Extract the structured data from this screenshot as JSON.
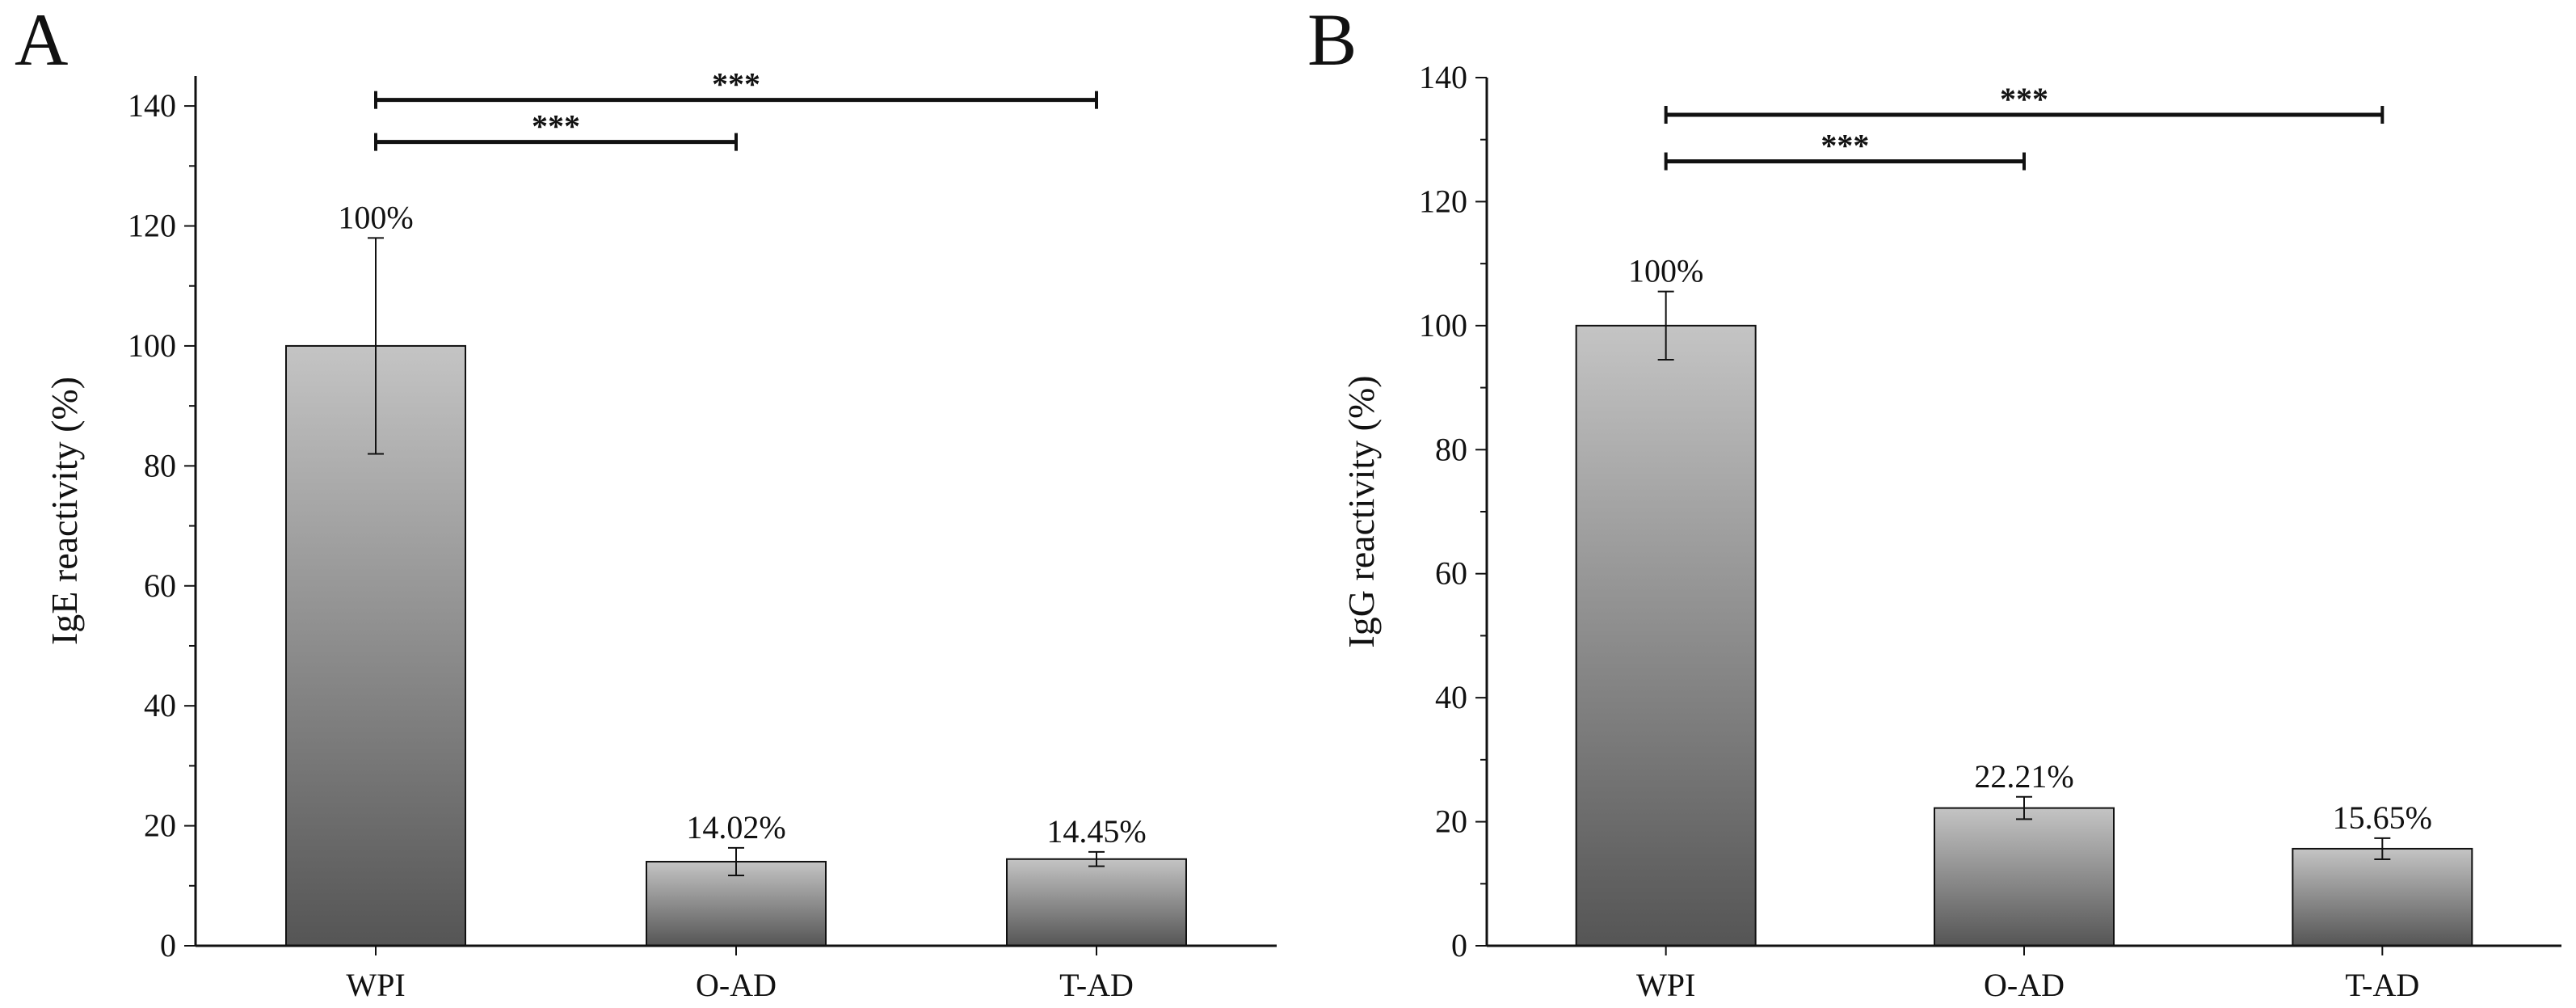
{
  "chart_data": [
    {
      "type": "bar",
      "panel_label": "A",
      "categories": [
        "WPI",
        "O-AD",
        "T-AD"
      ],
      "values": [
        100,
        14.02,
        14.45
      ],
      "errors": [
        18,
        2.3,
        1.2
      ],
      "data_labels": [
        "100%",
        "14.02%",
        "14.45%"
      ],
      "ylabel": "IgE reactivity (%)",
      "ylim": [
        0,
        145
      ],
      "yticks": [
        0,
        20,
        40,
        60,
        80,
        100,
        120,
        140
      ],
      "significance": [
        {
          "from": 0,
          "to": 1,
          "y": 134,
          "label": "***"
        },
        {
          "from": 0,
          "to": 2,
          "y": 141,
          "label": "***"
        }
      ]
    },
    {
      "type": "bar",
      "panel_label": "B",
      "categories": [
        "WPI",
        "O-AD",
        "T-AD"
      ],
      "values": [
        100,
        22.21,
        15.65
      ],
      "errors": [
        5.5,
        1.8,
        1.7
      ],
      "data_labels": [
        "100%",
        "22.21%",
        "15.65%"
      ],
      "ylabel": "IgG reactivity (%)",
      "ylim": [
        0,
        140
      ],
      "yticks": [
        0,
        20,
        40,
        60,
        80,
        100,
        120,
        140
      ],
      "significance": [
        {
          "from": 0,
          "to": 1,
          "y": 126.5,
          "label": "***"
        },
        {
          "from": 0,
          "to": 2,
          "y": 134,
          "label": "***"
        }
      ]
    }
  ],
  "colors": {
    "bar_top": "#c4c4c4",
    "bar_bottom": "#555555",
    "axis": "#111111"
  }
}
